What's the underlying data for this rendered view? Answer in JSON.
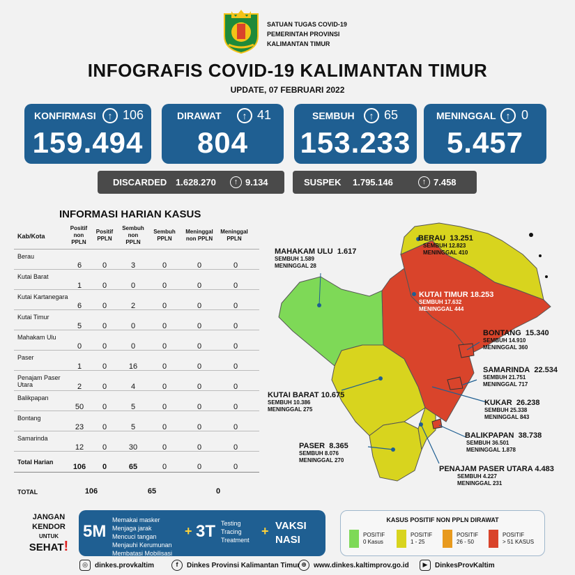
{
  "header": {
    "org_line1": "SATUAN TUGAS COVID-19",
    "org_line2": "PEMERINTAH PROVINSI",
    "org_line3": "KALIMANTAN TIMUR",
    "title": "INFOGRAFIS COVID-19 KALIMANTAN TIMUR",
    "update": "UPDATE, 07 FEBRUARI 2022"
  },
  "stats": {
    "konfirmasi": {
      "label": "KONFIRMASI",
      "delta": "106",
      "total": "159.494"
    },
    "dirawat": {
      "label": "DIRAWAT",
      "delta": "41",
      "total": "804"
    },
    "sembuh": {
      "label": "SEMBUH",
      "delta": "65",
      "total": "153.233"
    },
    "meninggal": {
      "label": "MENINGGAL",
      "delta": "0",
      "total": "5.457"
    }
  },
  "discarded": {
    "label": "DISCARDED",
    "value": "1.628.270",
    "delta": "9.134"
  },
  "suspek": {
    "label": "SUSPEK",
    "value": "1.795.146",
    "delta": "7.458"
  },
  "table": {
    "title": "INFORMASI HARIAN KASUS",
    "headers": [
      "Kab/Kota",
      "Positif non PPLN",
      "Positif PPLN",
      "Sembuh non PPLN",
      "Sembuh PPLN",
      "Meninggal non PPLN",
      "Meninggal PPLN"
    ],
    "rows": [
      {
        "name": "Berau",
        "v": [
          "6",
          "0",
          "3",
          "0",
          "0",
          "0"
        ]
      },
      {
        "name": "Kutai Barat",
        "v": [
          "1",
          "0",
          "0",
          "0",
          "0",
          "0"
        ]
      },
      {
        "name": "Kutai Kartanegara",
        "v": [
          "6",
          "0",
          "2",
          "0",
          "0",
          "0"
        ]
      },
      {
        "name": "Kutai Timur",
        "v": [
          "5",
          "0",
          "0",
          "0",
          "0",
          "0"
        ]
      },
      {
        "name": "Mahakam Ulu",
        "v": [
          "0",
          "0",
          "0",
          "0",
          "0",
          "0"
        ]
      },
      {
        "name": "Paser",
        "v": [
          "1",
          "0",
          "16",
          "0",
          "0",
          "0"
        ]
      },
      {
        "name": "Penajam Paser Utara",
        "v": [
          "2",
          "0",
          "4",
          "0",
          "0",
          "0"
        ]
      },
      {
        "name": "Balikpapan",
        "v": [
          "50",
          "0",
          "5",
          "0",
          "0",
          "0"
        ]
      },
      {
        "name": "Bontang",
        "v": [
          "23",
          "0",
          "5",
          "0",
          "0",
          "0"
        ]
      },
      {
        "name": "Samarinda",
        "v": [
          "12",
          "0",
          "30",
          "0",
          "0",
          "0"
        ]
      }
    ],
    "total_harian": {
      "label": "Total Harian",
      "v": [
        "106",
        "0",
        "65",
        "0",
        "0",
        "0"
      ]
    },
    "total": {
      "label": "TOTAL",
      "v": [
        "106",
        "65",
        "0"
      ]
    }
  },
  "map": {
    "berau": {
      "name": "BERAU",
      "total": "13.251",
      "sembuh": "SEMBUH 12.823",
      "meninggal": "MENINGGAL 410"
    },
    "mahakam_ulu": {
      "name": "MAHAKAM ULU",
      "total": "1.617",
      "sembuh": "SEMBUH 1.589",
      "meninggal": "MENINGGAL 28"
    },
    "kutai_timur": {
      "name": "KUTAI TIMUR",
      "total": "18.253",
      "sembuh": "SEMBUH 17.632",
      "meninggal": "MENINGGAL 444"
    },
    "bontang": {
      "name": "BONTANG",
      "total": "15.340",
      "sembuh": "SEMBUH 14.910",
      "meninggal": "MENINGGAL 360"
    },
    "samarinda": {
      "name": "SAMARINDA",
      "total": "22.534",
      "sembuh": "SEMBUH 21.751",
      "meninggal": "MENINGGAL 717"
    },
    "kutai_barat": {
      "name": "KUTAI BARAT",
      "total": "10.675",
      "sembuh": "SEMBUH 10.386",
      "meninggal": "MENINGGAL 275"
    },
    "kukar": {
      "name": "KUKAR",
      "total": "26.238",
      "sembuh": "SEMBUH 25.338",
      "meninggal": "MENINGGAL 843"
    },
    "balikpapan": {
      "name": "BALIKPAPAN",
      "total": "38.738",
      "sembuh": "SEMBUH 36.501",
      "meninggal": "MENINGGAL 1.878"
    },
    "paser": {
      "name": "PASER",
      "total": "8.365",
      "sembuh": "SEMBUH 8.076",
      "meninggal": "MENINGGAL 270"
    },
    "ppu": {
      "name": "PENAJAM PASER UTARA",
      "total": "4.483",
      "sembuh": "SEMBUH 4.227",
      "meninggal": "MENINGGAL 231"
    },
    "colors": {
      "green": "#7ed957",
      "yellow": "#d8d41e",
      "orange": "#e89a1e",
      "red": "#d9442b"
    }
  },
  "message": {
    "jangan": "JANGAN",
    "kendor": "KENDOR",
    "untuk": "UNTUK",
    "sehat": "SEHAT",
    "excl": "!",
    "m5": "5M",
    "m5_items": [
      "Memakai masker",
      "Menjaga jarak",
      "Mencuci tangan",
      "Menjauhi Kerumunan",
      "Membatasi Mobilisasi"
    ],
    "m3": "3T",
    "m3_items": [
      "Testing",
      "Tracing",
      "Treatment"
    ],
    "plus": "+",
    "vaksi1": "VAKSI",
    "vaksi2": "NASI"
  },
  "legend": {
    "title": "KASUS POSITIF NON PPLN DIRAWAT",
    "items": [
      {
        "l1": "POSITIF",
        "l2": "0 Kasus"
      },
      {
        "l1": "POSITIF",
        "l2": "1 - 25"
      },
      {
        "l1": "POSITIF",
        "l2": "26 - 50"
      },
      {
        "l1": "POSITIF",
        "l2": "> 51 KASUS"
      }
    ]
  },
  "footer": {
    "instagram": "dinkes.provkaltim",
    "facebook": "Dinkes Provinsi Kalimantan Timur",
    "web": "www.dinkes.kaltimprov.go.id",
    "youtube": "DinkesProvKaltim"
  }
}
